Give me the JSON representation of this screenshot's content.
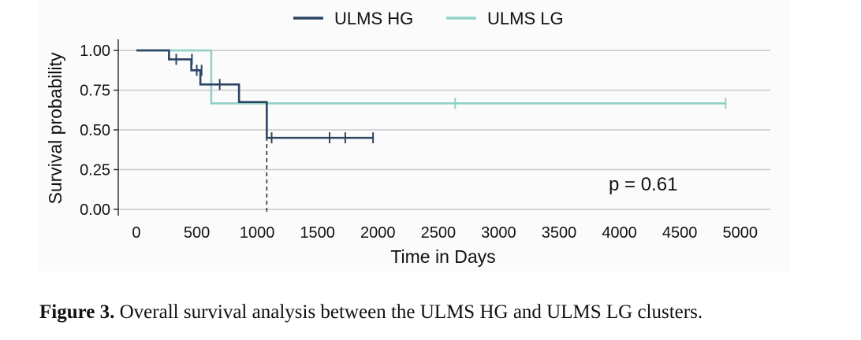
{
  "caption": {
    "label": "Figure 3.",
    "text": " Overall survival analysis between the ULMS HG and ULMS LG clusters."
  },
  "chart_data": {
    "type": "line",
    "subtype": "kaplan-meier step",
    "title": "",
    "xlabel": "Time in Days",
    "ylabel": "Survival probability",
    "xlim": [
      -150,
      5250
    ],
    "ylim": [
      -0.03,
      1.06
    ],
    "xticks": [
      0,
      500,
      1000,
      1500,
      2000,
      2500,
      3000,
      3500,
      4000,
      4500,
      5000
    ],
    "xtick_labels": [
      "0",
      "500",
      "1000",
      "1500",
      "2000",
      "2500",
      "3000",
      "3500",
      "4000",
      "4500",
      "5000"
    ],
    "yticks": [
      0,
      0.25,
      0.5,
      0.75,
      1.0
    ],
    "ytick_labels": [
      "0.00",
      "0.25",
      "0.50",
      "0.75",
      "1.00"
    ],
    "grid": "horizontal",
    "legend_position": "top",
    "annotation": "p = 0.61",
    "median_line_x": 1080,
    "series": [
      {
        "name": "ULMS HG",
        "color": "#2b4562",
        "steps": [
          [
            0,
            1.0
          ],
          [
            270,
            0.944
          ],
          [
            455,
            0.875
          ],
          [
            530,
            0.786
          ],
          [
            850,
            0.675
          ],
          [
            1080,
            0.45
          ],
          [
            1960,
            0.45
          ]
        ],
        "censors": [
          [
            330,
            0.944
          ],
          [
            460,
            0.944
          ],
          [
            500,
            0.875
          ],
          [
            540,
            0.875
          ],
          [
            690,
            0.786
          ],
          [
            1120,
            0.45
          ],
          [
            1600,
            0.45
          ],
          [
            1730,
            0.45
          ],
          [
            1960,
            0.45
          ]
        ]
      },
      {
        "name": "ULMS LG",
        "color": "#8fd1c6",
        "steps": [
          [
            0,
            1.0
          ],
          [
            620,
            0.667
          ],
          [
            4880,
            0.667
          ]
        ],
        "censors": [
          [
            2640,
            0.667
          ],
          [
            4880,
            0.667
          ]
        ]
      }
    ]
  }
}
